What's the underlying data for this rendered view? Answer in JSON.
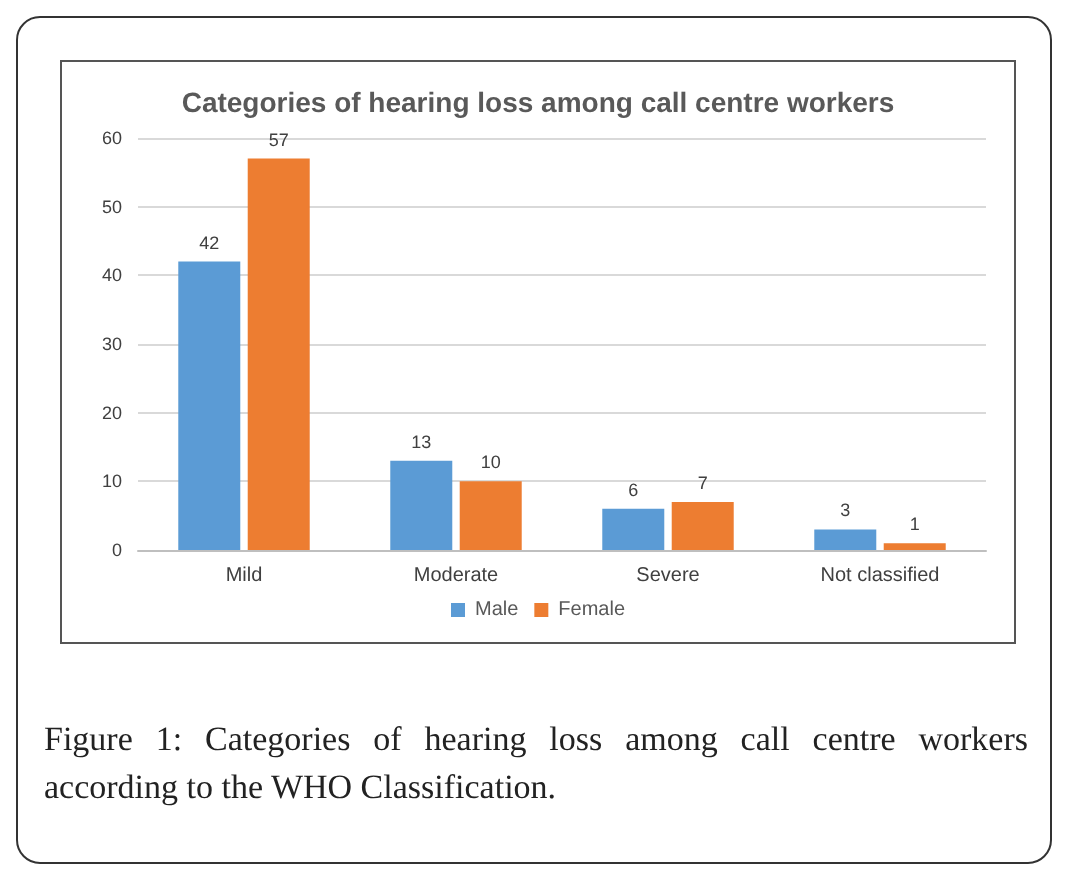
{
  "chart_data": {
    "type": "bar",
    "title": "Categories of hearing loss among call centre workers",
    "categories": [
      "Mild",
      "Moderate",
      "Severe",
      "Not classified"
    ],
    "series": [
      {
        "name": "Male",
        "color": "#5b9bd5",
        "values": [
          42,
          13,
          6,
          3
        ]
      },
      {
        "name": "Female",
        "color": "#ed7d31",
        "values": [
          57,
          10,
          7,
          1
        ]
      }
    ],
    "ylim": [
      0,
      60
    ],
    "yticks": [
      0,
      10,
      20,
      30,
      40,
      50,
      60
    ],
    "grid": "y",
    "legend": "bottom",
    "data_labels": true,
    "annotations": [
      "Figure 1: Categories of hearing loss among call centre workers according to the WHO Classification."
    ]
  }
}
